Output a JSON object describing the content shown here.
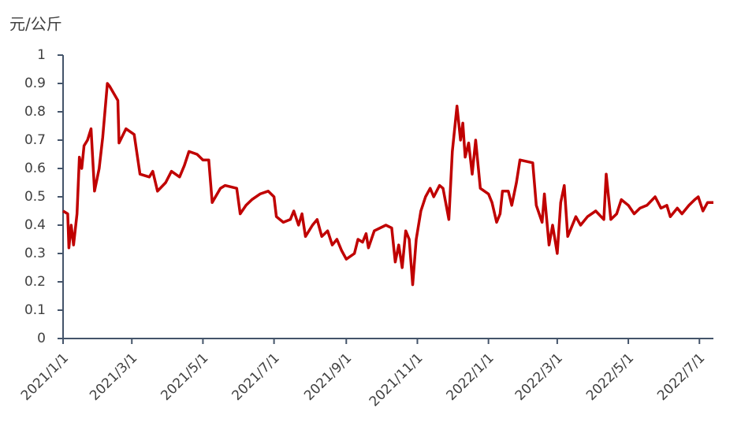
{
  "chart_data": {
    "type": "line",
    "y_label": "元/公斤",
    "color": "#c00000",
    "x": [
      "2021/1/1",
      "2021/1/5",
      "2021/1/6",
      "2021/1/8",
      "2021/1/10",
      "2021/1/13",
      "2021/1/15",
      "2021/1/17",
      "2021/1/19",
      "2021/1/22",
      "2021/1/25",
      "2021/1/28",
      "2021/2/1",
      "2021/2/4",
      "2021/2/8",
      "2021/2/10",
      "2021/2/17",
      "2021/2/18",
      "2021/2/24",
      "2021/3/3",
      "2021/3/8",
      "2021/3/16",
      "2021/3/19",
      "2021/3/23",
      "2021/3/30",
      "2021/4/4",
      "2021/4/11",
      "2021/4/15",
      "2021/4/19",
      "2021/4/26",
      "2021/5/1",
      "2021/5/6",
      "2021/5/9",
      "2021/5/16",
      "2021/5/20",
      "2021/5/30",
      "2021/6/2",
      "2021/6/7",
      "2021/6/12",
      "2021/6/19",
      "2021/6/26",
      "2021/7/1",
      "2021/7/3",
      "2021/7/9",
      "2021/7/15",
      "2021/7/18",
      "2021/7/22",
      "2021/7/25",
      "2021/7/28",
      "2021/8/3",
      "2021/8/7",
      "2021/8/11",
      "2021/8/16",
      "2021/8/20",
      "2021/8/24",
      "2021/8/28",
      "2021/9/1",
      "2021/9/8",
      "2021/9/11",
      "2021/9/15",
      "2021/9/18",
      "2021/9/20",
      "2021/9/25",
      "2021/10/5",
      "2021/10/10",
      "2021/10/13",
      "2021/10/16",
      "2021/10/19",
      "2021/10/22",
      "2021/10/25",
      "2021/10/28",
      "2021/10/31",
      "2021/11/4",
      "2021/11/8",
      "2021/11/12",
      "2021/11/15",
      "2021/11/20",
      "2021/11/23",
      "2021/11/28",
      "2021/12/1",
      "2021/12/5",
      "2021/12/8",
      "2021/12/10",
      "2021/12/12",
      "2021/12/15",
      "2021/12/18",
      "2021/12/21",
      "2021/12/25",
      "2022/1/1",
      "2022/1/4",
      "2022/1/8",
      "2022/1/11",
      "2022/1/13",
      "2022/1/18",
      "2022/1/21",
      "2022/1/25",
      "2022/1/28",
      "2022/2/8",
      "2022/2/11",
      "2022/2/16",
      "2022/2/18",
      "2022/2/22",
      "2022/2/25",
      "2022/3/1",
      "2022/3/4",
      "2022/3/7",
      "2022/3/10",
      "2022/3/17",
      "2022/3/21",
      "2022/3/27",
      "2022/4/3",
      "2022/4/10",
      "2022/4/12",
      "2022/4/16",
      "2022/4/21",
      "2022/4/25",
      "2022/5/1",
      "2022/5/6",
      "2022/5/11",
      "2022/5/17",
      "2022/5/24",
      "2022/5/29",
      "2022/6/3",
      "2022/6/6",
      "2022/6/12",
      "2022/6/16",
      "2022/6/22",
      "2022/6/27",
      "2022/6/30",
      "2022/7/4",
      "2022/7/8",
      "2022/7/13"
    ],
    "values": [
      0.45,
      0.44,
      0.32,
      0.4,
      0.33,
      0.44,
      0.64,
      0.6,
      0.68,
      0.7,
      0.74,
      0.52,
      0.6,
      0.71,
      0.9,
      0.89,
      0.84,
      0.69,
      0.74,
      0.72,
      0.58,
      0.57,
      0.59,
      0.52,
      0.55,
      0.59,
      0.57,
      0.61,
      0.66,
      0.65,
      0.63,
      0.63,
      0.48,
      0.53,
      0.54,
      0.53,
      0.44,
      0.47,
      0.49,
      0.51,
      0.52,
      0.5,
      0.43,
      0.41,
      0.42,
      0.45,
      0.4,
      0.44,
      0.36,
      0.4,
      0.42,
      0.36,
      0.38,
      0.33,
      0.35,
      0.31,
      0.28,
      0.3,
      0.35,
      0.34,
      0.37,
      0.32,
      0.38,
      0.4,
      0.39,
      0.27,
      0.33,
      0.25,
      0.38,
      0.35,
      0.19,
      0.35,
      0.45,
      0.5,
      0.53,
      0.5,
      0.54,
      0.53,
      0.42,
      0.66,
      0.82,
      0.7,
      0.76,
      0.64,
      0.69,
      0.58,
      0.7,
      0.53,
      0.51,
      0.48,
      0.41,
      0.44,
      0.52,
      0.52,
      0.47,
      0.55,
      0.63,
      0.62,
      0.47,
      0.41,
      0.51,
      0.33,
      0.4,
      0.3,
      0.48,
      0.54,
      0.36,
      0.43,
      0.4,
      0.43,
      0.45,
      0.42,
      0.58,
      0.42,
      0.44,
      0.49,
      0.47,
      0.44,
      0.46,
      0.47,
      0.5,
      0.46,
      0.47,
      0.43,
      0.46,
      0.44,
      0.47,
      0.49,
      0.5,
      0.45,
      0.48,
      0.48
    ],
    "xlim": [
      "2021/1/1",
      "2022/7/13"
    ],
    "xticks": [
      "2021/1/1",
      "2021/3/1",
      "2021/5/1",
      "2021/7/1",
      "2021/9/1",
      "2021/11/1",
      "2022/1/1",
      "2022/3/1",
      "2022/5/1",
      "2022/7/1"
    ],
    "ylim": [
      0,
      1
    ],
    "yticks": [
      0,
      0.1,
      0.2,
      0.3,
      0.4,
      0.5,
      0.6,
      0.7,
      0.8,
      0.9,
      1
    ]
  }
}
